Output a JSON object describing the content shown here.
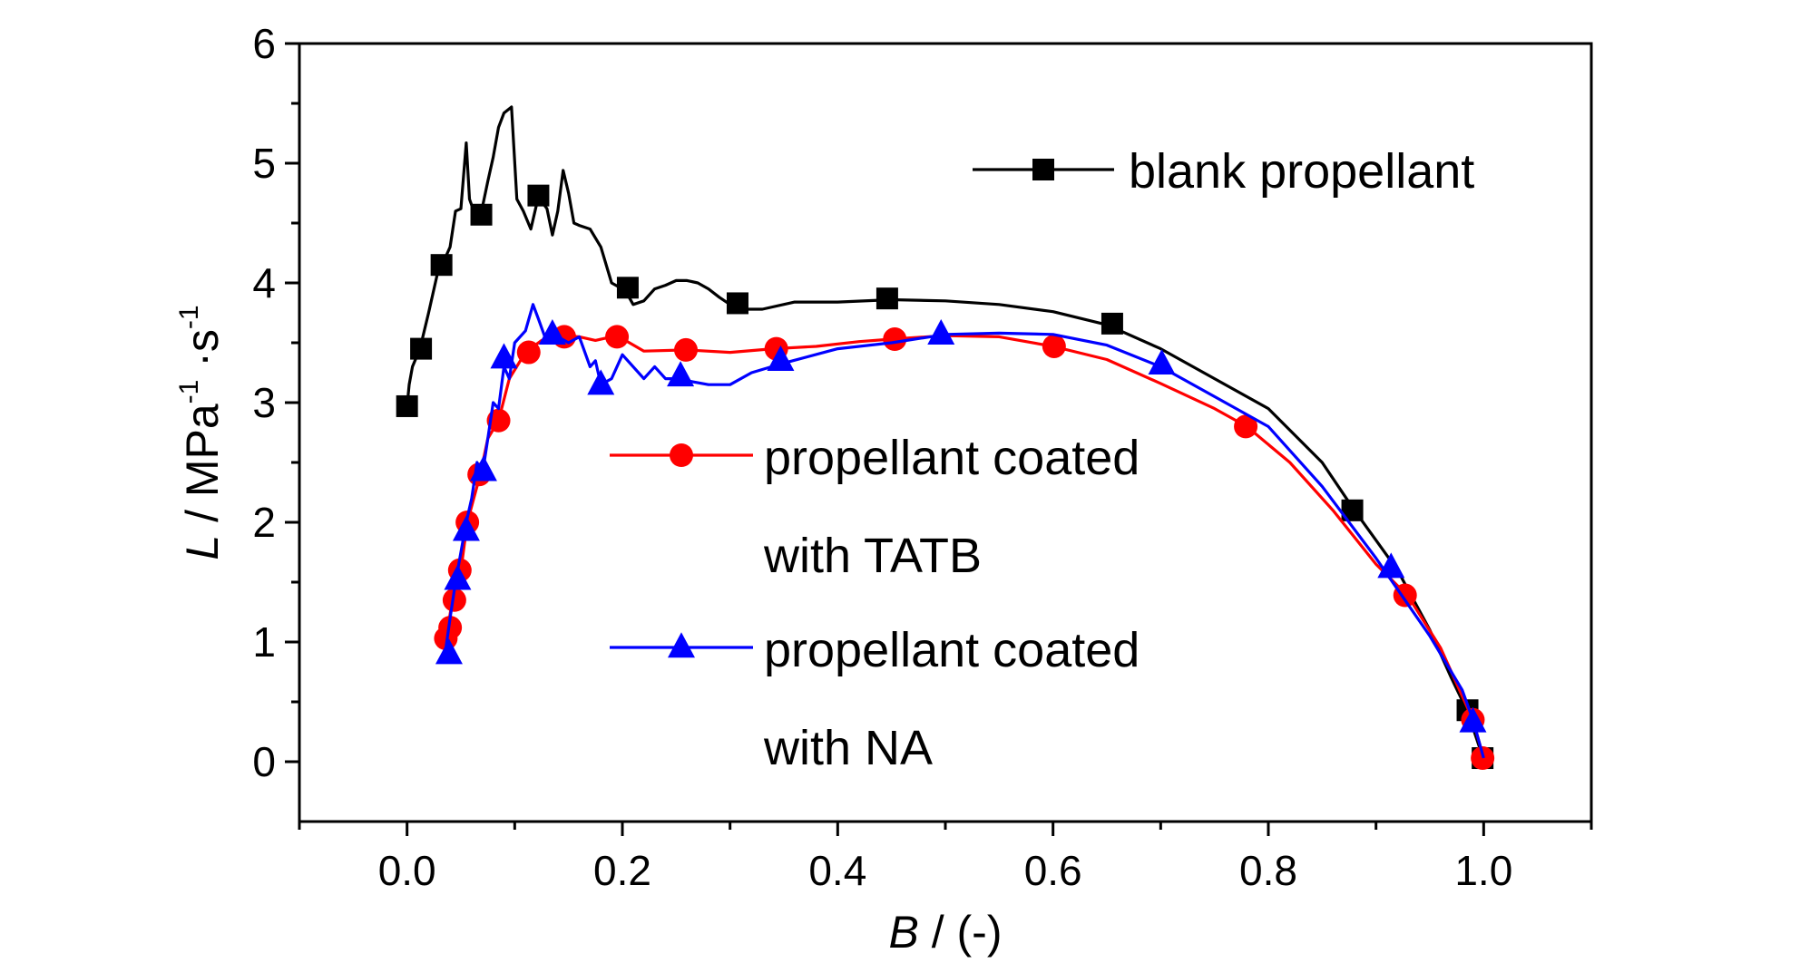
{
  "chart_data": {
    "type": "line",
    "xlim": [
      -0.1,
      1.1
    ],
    "ylim": [
      -0.5,
      6
    ],
    "x_ticks": [
      "0.0",
      "0.2",
      "0.4",
      "0.6",
      "0.8",
      "1.0"
    ],
    "y_ticks": [
      "0",
      "1",
      "2",
      "3",
      "4",
      "5",
      "6"
    ],
    "xlabel": {
      "var": "B",
      "rest": " / (-)"
    },
    "ylabel": {
      "var": "L",
      "rest": " / MPa",
      "sup1": "-1",
      "mid": " ·s",
      "sup2": "-1"
    },
    "grid": false,
    "legend_position": "inside",
    "series": [
      {
        "name": "blank propellant",
        "name_lines": [
          "blank propellant"
        ],
        "color": "#000000",
        "marker": "square",
        "x": [
          0.0,
          0.002,
          0.005,
          0.012,
          0.02,
          0.03,
          0.035,
          0.04,
          0.045,
          0.05,
          0.055,
          0.058,
          0.062,
          0.068,
          0.075,
          0.08,
          0.085,
          0.09,
          0.097,
          0.102,
          0.108,
          0.115,
          0.122,
          0.13,
          0.135,
          0.14,
          0.145,
          0.15,
          0.155,
          0.16,
          0.17,
          0.18,
          0.19,
          0.2,
          0.205,
          0.21,
          0.22,
          0.23,
          0.24,
          0.25,
          0.26,
          0.27,
          0.28,
          0.29,
          0.3,
          0.31,
          0.33,
          0.36,
          0.4,
          0.45,
          0.5,
          0.55,
          0.6,
          0.65,
          0.7,
          0.75,
          0.8,
          0.85,
          0.88,
          0.9,
          0.92,
          0.95,
          0.97,
          0.985,
          0.995,
          1.0
        ],
        "y": [
          2.97,
          3.15,
          3.3,
          3.45,
          3.75,
          4.15,
          4.2,
          4.3,
          4.6,
          4.62,
          5.17,
          4.7,
          4.6,
          4.55,
          4.85,
          5.05,
          5.3,
          5.42,
          5.47,
          4.7,
          4.6,
          4.45,
          4.72,
          4.62,
          4.4,
          4.6,
          4.94,
          4.75,
          4.5,
          4.48,
          4.45,
          4.3,
          4.0,
          3.95,
          3.9,
          3.82,
          3.85,
          3.95,
          3.98,
          4.02,
          4.02,
          4.0,
          3.95,
          3.88,
          3.82,
          3.78,
          3.78,
          3.84,
          3.84,
          3.86,
          3.85,
          3.82,
          3.76,
          3.65,
          3.45,
          3.2,
          2.95,
          2.5,
          2.1,
          1.85,
          1.6,
          1.1,
          0.7,
          0.42,
          0.15,
          0.02
        ],
        "marker_x": [
          0.0,
          0.013,
          0.032,
          0.069,
          0.122,
          0.205,
          0.307,
          0.446,
          0.655,
          0.878,
          0.985,
          0.999
        ],
        "marker_y": [
          2.97,
          3.45,
          4.15,
          4.57,
          4.73,
          3.96,
          3.83,
          3.87,
          3.66,
          2.1,
          0.43,
          0.03
        ]
      },
      {
        "name": "propellant coated with TATB",
        "name_lines": [
          "propellant coated",
          "with TATB"
        ],
        "color": "#ff0000",
        "marker": "circle",
        "x": [
          0.035,
          0.038,
          0.042,
          0.045,
          0.05,
          0.056,
          0.062,
          0.068,
          0.075,
          0.085,
          0.095,
          0.11,
          0.125,
          0.14,
          0.16,
          0.175,
          0.195,
          0.22,
          0.26,
          0.3,
          0.34,
          0.38,
          0.42,
          0.45,
          0.5,
          0.55,
          0.6,
          0.65,
          0.7,
          0.75,
          0.78,
          0.82,
          0.86,
          0.9,
          0.93,
          0.96,
          0.98,
          0.99,
          1.0
        ],
        "y": [
          1.03,
          1.12,
          1.35,
          1.6,
          1.6,
          2.0,
          2.2,
          2.4,
          2.7,
          2.85,
          3.2,
          3.42,
          3.52,
          3.56,
          3.55,
          3.52,
          3.56,
          3.43,
          3.44,
          3.42,
          3.45,
          3.47,
          3.51,
          3.53,
          3.56,
          3.55,
          3.47,
          3.36,
          3.16,
          2.95,
          2.8,
          2.5,
          2.1,
          1.65,
          1.38,
          0.95,
          0.55,
          0.35,
          0.03
        ],
        "marker_x": [
          0.036,
          0.04,
          0.044,
          0.049,
          0.056,
          0.067,
          0.085,
          0.113,
          0.146,
          0.195,
          0.259,
          0.343,
          0.453,
          0.601,
          0.779,
          0.927,
          0.99,
          0.999
        ],
        "marker_y": [
          1.03,
          1.12,
          1.35,
          1.6,
          2.0,
          2.4,
          2.85,
          3.42,
          3.55,
          3.55,
          3.44,
          3.45,
          3.53,
          3.47,
          2.8,
          1.39,
          0.35,
          0.03
        ]
      },
      {
        "name": "propellant coated with NA",
        "name_lines": [
          "propellant coated",
          "with NA"
        ],
        "color": "#0000ff",
        "marker": "triangle",
        "x": [
          0.035,
          0.04,
          0.045,
          0.05,
          0.055,
          0.06,
          0.065,
          0.07,
          0.075,
          0.08,
          0.085,
          0.09,
          0.095,
          0.1,
          0.11,
          0.117,
          0.122,
          0.13,
          0.135,
          0.14,
          0.15,
          0.16,
          0.17,
          0.175,
          0.18,
          0.19,
          0.2,
          0.21,
          0.22,
          0.23,
          0.24,
          0.25,
          0.28,
          0.3,
          0.32,
          0.35,
          0.4,
          0.45,
          0.5,
          0.55,
          0.6,
          0.65,
          0.7,
          0.75,
          0.8,
          0.85,
          0.9,
          0.95,
          0.98,
          0.99,
          1.0
        ],
        "y": [
          0.88,
          1.2,
          1.5,
          1.75,
          2.0,
          2.2,
          2.5,
          2.4,
          2.7,
          3.0,
          2.95,
          3.3,
          3.2,
          3.5,
          3.6,
          3.82,
          3.7,
          3.5,
          3.65,
          3.55,
          3.5,
          3.55,
          3.3,
          3.35,
          3.15,
          3.2,
          3.4,
          3.3,
          3.2,
          3.3,
          3.2,
          3.2,
          3.15,
          3.15,
          3.25,
          3.33,
          3.45,
          3.5,
          3.57,
          3.58,
          3.57,
          3.48,
          3.3,
          3.05,
          2.8,
          2.3,
          1.7,
          1.05,
          0.6,
          0.35,
          0.03
        ],
        "marker_x": [
          0.039,
          0.047,
          0.055,
          0.071,
          0.09,
          0.135,
          0.18,
          0.254,
          0.347,
          0.496,
          0.701,
          0.914,
          0.99
        ],
        "marker_y": [
          0.9,
          1.52,
          1.93,
          2.43,
          3.37,
          3.57,
          3.15,
          3.22,
          3.35,
          3.57,
          3.32,
          1.62,
          0.33
        ]
      }
    ]
  }
}
